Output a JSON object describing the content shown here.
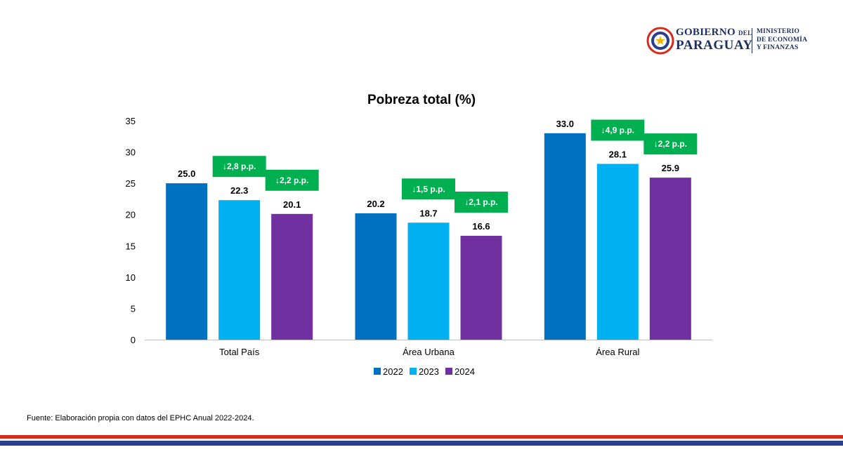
{
  "header": {
    "logo_gov_line1": "GOBIERNO",
    "logo_gov_del": "DEL",
    "logo_gov_line2": "PARAGUAY",
    "logo_min_line1": "MINISTERIO",
    "logo_min_line2": "DE ECONOMÍA",
    "logo_min_line3": "Y FINANZAS"
  },
  "chart_data": {
    "type": "bar",
    "title": "Pobreza total (%)",
    "categories": [
      "Total País",
      "Área Urbana",
      "Área Rural"
    ],
    "series": [
      {
        "name": "2022",
        "values": [
          25.0,
          20.2,
          33.0
        ]
      },
      {
        "name": "2023",
        "values": [
          22.3,
          18.7,
          28.1
        ]
      },
      {
        "name": "2024",
        "values": [
          20.1,
          16.6,
          25.9
        ]
      }
    ],
    "data_labels": [
      [
        "25.0",
        "22.3",
        "20.1"
      ],
      [
        "20.2",
        "18.7",
        "16.6"
      ],
      [
        "33.0",
        "28.1",
        "25.9"
      ]
    ],
    "annotations": [
      {
        "category": "Total País",
        "series": "2023",
        "text": "↓2,8 p.p."
      },
      {
        "category": "Total País",
        "series": "2024",
        "text": "↓2,2 p.p."
      },
      {
        "category": "Área Urbana",
        "series": "2023",
        "text": "↓1,5 p.p."
      },
      {
        "category": "Área Urbana",
        "series": "2024",
        "text": "↓2,1 p.p."
      },
      {
        "category": "Área Rural",
        "series": "2023",
        "text": "↓4,9 p.p."
      },
      {
        "category": "Área Rural",
        "series": "2024",
        "text": "↓2,2 p.p."
      }
    ],
    "ylim": [
      0,
      35
    ],
    "yticks": [
      "0",
      "5",
      "10",
      "15",
      "20",
      "25",
      "30",
      "35"
    ],
    "xlabel": "",
    "ylabel": "",
    "grid": false,
    "legend_position": "bottom",
    "colors": {
      "2022": "#0070c0",
      "2023": "#00b0f0",
      "2024": "#7030a0",
      "annotation": "#00b050"
    }
  },
  "footer": {
    "source": "Fuente: Elaboración propia con datos del EPHC Anual 2022-2024."
  }
}
